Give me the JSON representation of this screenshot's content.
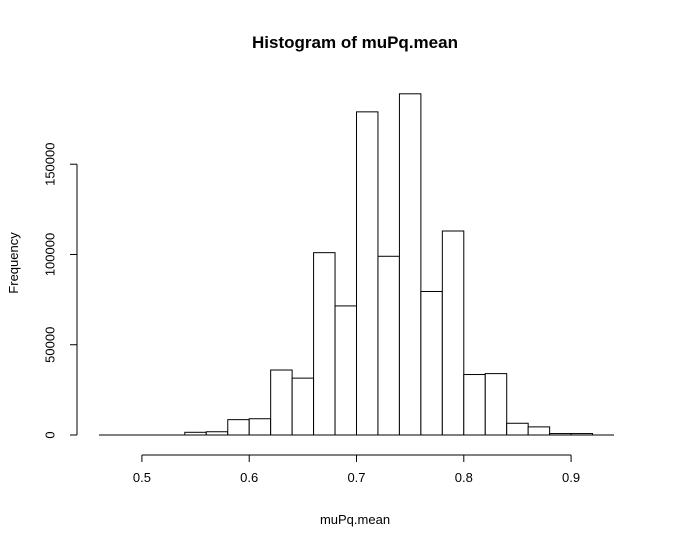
{
  "chart_data": {
    "type": "bar",
    "title": "Histogram of muPq.mean",
    "xlabel": "muPq.mean",
    "ylabel": "Frequency",
    "xlim": [
      0.46,
      0.94
    ],
    "ylim": [
      0,
      190000
    ],
    "x_ticks": [
      {
        "value": 0.5,
        "label": "0.5"
      },
      {
        "value": 0.6,
        "label": "0.6"
      },
      {
        "value": 0.7,
        "label": "0.7"
      },
      {
        "value": 0.8,
        "label": "0.8"
      },
      {
        "value": 0.9,
        "label": "0.9"
      }
    ],
    "y_ticks": [
      {
        "value": 0,
        "label": "0"
      },
      {
        "value": 50000,
        "label": "50000"
      },
      {
        "value": 100000,
        "label": "100000"
      },
      {
        "value": 150000,
        "label": "150000"
      }
    ],
    "bins": [
      {
        "start": 0.54,
        "end": 0.56,
        "count": 1500
      },
      {
        "start": 0.56,
        "end": 0.58,
        "count": 1800
      },
      {
        "start": 0.58,
        "end": 0.6,
        "count": 8500
      },
      {
        "start": 0.6,
        "end": 0.62,
        "count": 9000
      },
      {
        "start": 0.62,
        "end": 0.64,
        "count": 36000
      },
      {
        "start": 0.64,
        "end": 0.66,
        "count": 31500
      },
      {
        "start": 0.66,
        "end": 0.68,
        "count": 101000
      },
      {
        "start": 0.68,
        "end": 0.7,
        "count": 71500
      },
      {
        "start": 0.7,
        "end": 0.72,
        "count": 179000
      },
      {
        "start": 0.72,
        "end": 0.74,
        "count": 99000
      },
      {
        "start": 0.74,
        "end": 0.76,
        "count": 189000
      },
      {
        "start": 0.76,
        "end": 0.78,
        "count": 79500
      },
      {
        "start": 0.78,
        "end": 0.8,
        "count": 113000
      },
      {
        "start": 0.8,
        "end": 0.82,
        "count": 33500
      },
      {
        "start": 0.82,
        "end": 0.84,
        "count": 34000
      },
      {
        "start": 0.84,
        "end": 0.86,
        "count": 6500
      },
      {
        "start": 0.86,
        "end": 0.88,
        "count": 4500
      },
      {
        "start": 0.88,
        "end": 0.9,
        "count": 800
      },
      {
        "start": 0.9,
        "end": 0.92,
        "count": 800
      }
    ],
    "grid": false,
    "legend": "none"
  }
}
